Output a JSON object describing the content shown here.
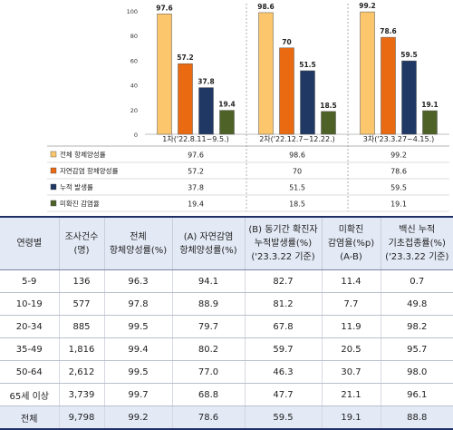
{
  "chart_data": {
    "type": "bar",
    "categories": [
      "1차('22.8.11~9.5.)",
      "2차('22.12.7~12.22.)",
      "3차('23.3.27~4.15.)"
    ],
    "series": [
      {
        "name": "전체 항체양성률",
        "color": "#fbc66c",
        "values": [
          97.6,
          98.6,
          99.2
        ]
      },
      {
        "name": "자연감염 항체양성률",
        "color": "#ea6a12",
        "values": [
          57.2,
          70,
          78.6
        ]
      },
      {
        "name": "누적 발생률",
        "color": "#1f3864",
        "values": [
          37.8,
          51.5,
          59.5
        ]
      },
      {
        "name": "미확진 감염율",
        "color": "#4e6228",
        "values": [
          19.4,
          18.5,
          19.1
        ]
      }
    ],
    "y_ticks": [
      0,
      20,
      40,
      60,
      80,
      100
    ],
    "ylim": [
      0,
      100
    ],
    "legend_position": "table-below-left"
  },
  "table": {
    "headers": [
      [
        "연령별"
      ],
      [
        "조사건수",
        "(명)"
      ],
      [
        "전체",
        "항체양성률(%)"
      ],
      [
        "(A) 자연감염",
        "항체양성률(%)"
      ],
      [
        "(B) 동기간 확진자",
        "누적발생률(%)",
        "('23.3.22 기준)"
      ],
      [
        "미확진",
        "감염율(%p)",
        "(A-B)"
      ],
      [
        "백신 누적",
        "기초접종률(%)",
        "('23.3.22 기준)"
      ]
    ],
    "rows": [
      [
        "5-9",
        "136",
        "96.3",
        "94.1",
        "82.7",
        "11.4",
        "0.7"
      ],
      [
        "10-19",
        "577",
        "97.8",
        "88.9",
        "81.2",
        "7.7",
        "49.8"
      ],
      [
        "20-34",
        "885",
        "99.5",
        "79.7",
        "67.8",
        "11.9",
        "98.2"
      ],
      [
        "35-49",
        "1,816",
        "99.4",
        "80.2",
        "59.7",
        "20.5",
        "95.7"
      ],
      [
        "50-64",
        "2,612",
        "99.5",
        "77.0",
        "46.3",
        "30.7",
        "98.0"
      ],
      [
        "65세 이상",
        "3,739",
        "99.7",
        "68.8",
        "47.7",
        "21.1",
        "96.1"
      ]
    ],
    "total": [
      "전체",
      "9,798",
      "99.2",
      "78.6",
      "59.5",
      "19.1",
      "88.8"
    ]
  }
}
